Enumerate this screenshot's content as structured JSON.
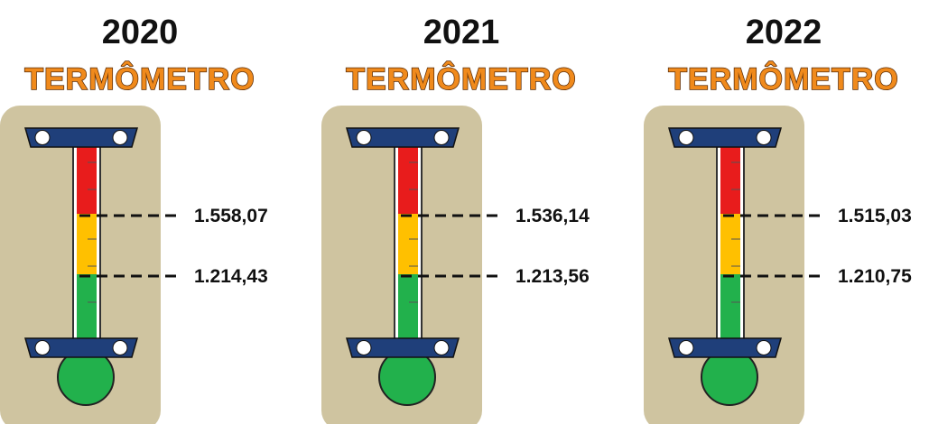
{
  "panels": [
    {
      "year": "2020",
      "title": "TERMÔMETRO",
      "upper": "1.558,07",
      "lower": "1.214,43"
    },
    {
      "year": "2021",
      "title": "TERMÔMETRO",
      "upper": "1.536,14",
      "lower": "1.213,56"
    },
    {
      "year": "2022",
      "title": "TERMÔMETRO",
      "upper": "1.515,03",
      "lower": "1.210,75"
    }
  ]
}
